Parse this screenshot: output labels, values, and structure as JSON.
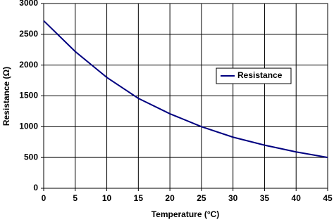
{
  "chart_data": {
    "type": "line",
    "x_label": "Temperature (°C)",
    "y_label": "Resistance (Ω)",
    "x": [
      0,
      5,
      10,
      15,
      20,
      25,
      30,
      35,
      40,
      45
    ],
    "series": [
      {
        "name": "Resistance",
        "color": "#000080",
        "values": [
          2720,
          2220,
          1800,
          1460,
          1210,
          1000,
          830,
          700,
          590,
          500
        ]
      }
    ],
    "xlim": [
      0,
      45
    ],
    "xticks": [
      0,
      5,
      10,
      15,
      20,
      25,
      30,
      35,
      40,
      45
    ],
    "ylim": [
      0,
      3000
    ],
    "yticks": [
      0,
      500,
      1000,
      1500,
      2000,
      2500,
      3000
    ],
    "grid": true,
    "legend": "center right"
  }
}
